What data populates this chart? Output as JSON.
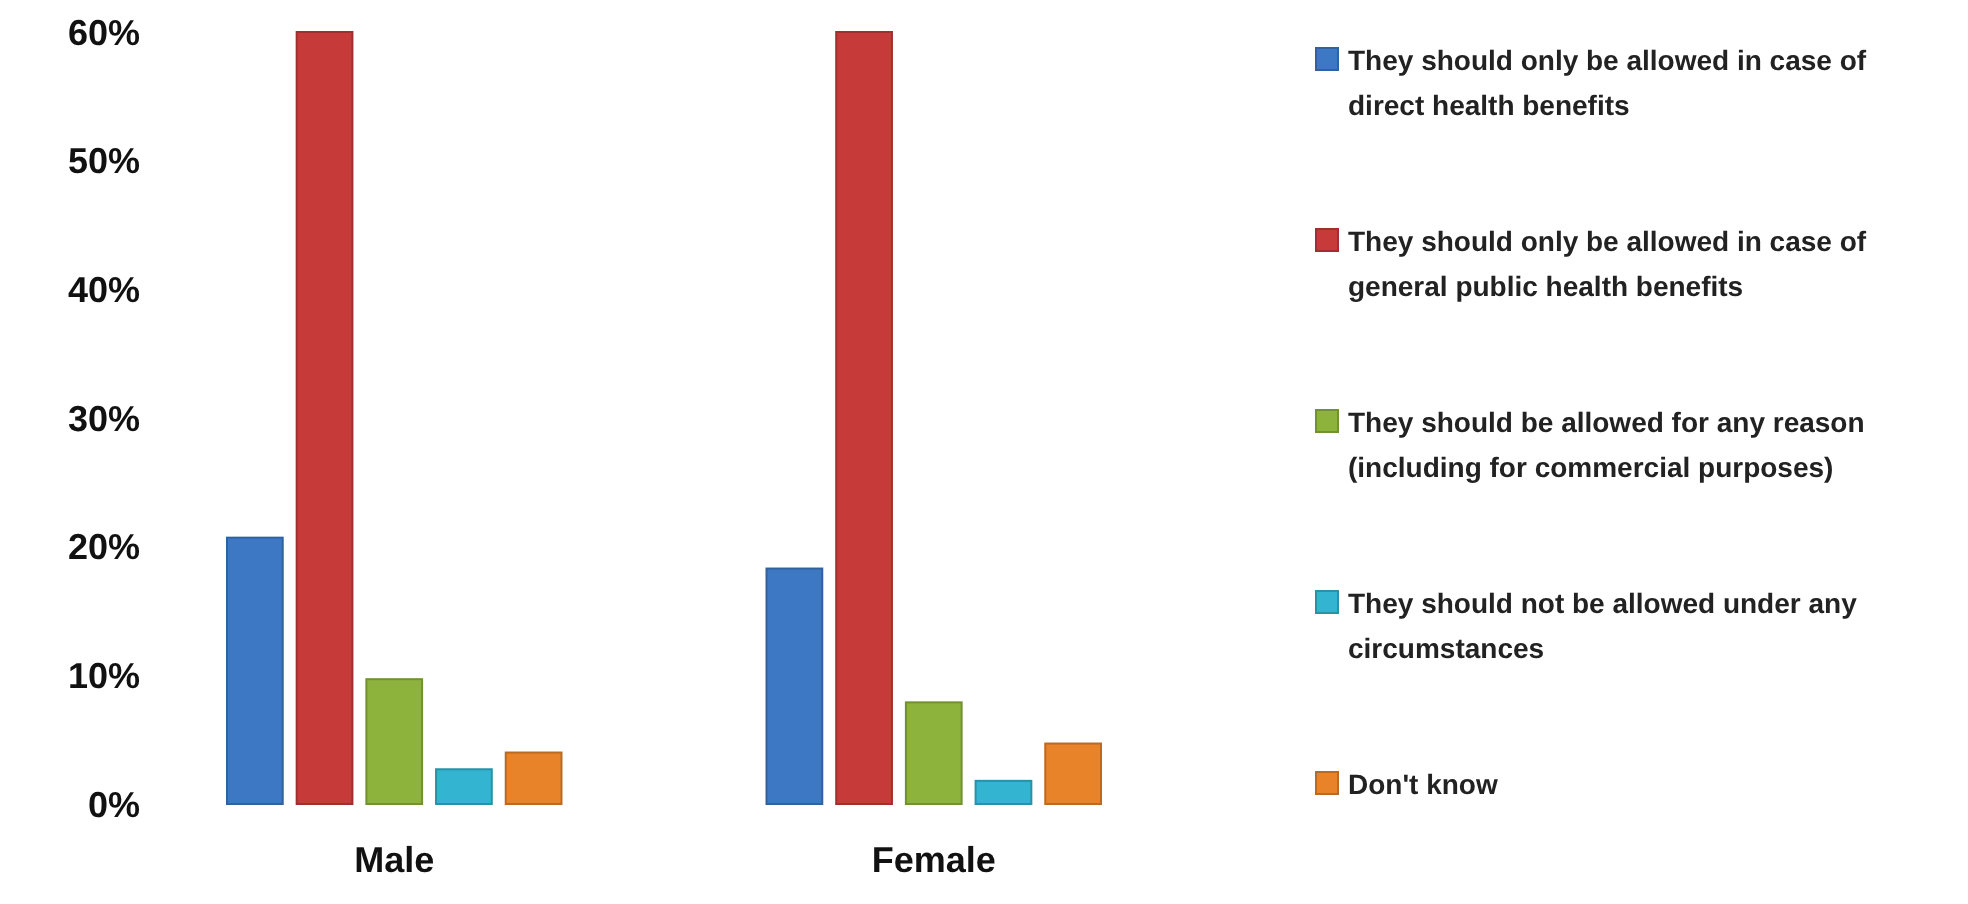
{
  "chart_data": {
    "type": "bar",
    "categories": [
      "Male",
      "Female"
    ],
    "series": [
      {
        "name": "They should only be allowed in case of direct health benefits",
        "color": "#3d78c4",
        "values": [
          20.7,
          18.3
        ]
      },
      {
        "name": "They should only be allowed in case of general public health benefits",
        "color": "#c73a3a",
        "values": [
          60,
          60
        ]
      },
      {
        "name": "They should be allowed for any reason (including for commercial purposes)",
        "color": "#8db33c",
        "values": [
          9.7,
          7.9
        ]
      },
      {
        "name": "They should not be allowed under any circumstances",
        "color": "#33b4d0",
        "values": [
          2.7,
          1.8
        ]
      },
      {
        "name": "Don't know",
        "color": "#e8832a",
        "values": [
          4.0,
          4.7
        ]
      }
    ],
    "ylim": [
      0,
      60
    ],
    "yticks": [
      {
        "value": 0,
        "label": "0%"
      },
      {
        "value": 10,
        "label": "10%"
      },
      {
        "value": 20,
        "label": "20%"
      },
      {
        "value": 30,
        "label": "30%"
      },
      {
        "value": 40,
        "label": "40%"
      },
      {
        "value": 50,
        "label": "50%"
      },
      {
        "value": 60,
        "label": "60%"
      }
    ],
    "legend": "right"
  }
}
